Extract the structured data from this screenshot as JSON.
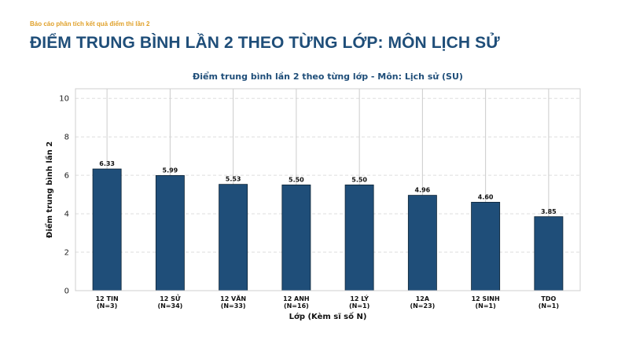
{
  "header": {
    "kicker": "Báo cáo phân tích kết quả điểm thi lần 2",
    "title": "ĐIỂM TRUNG BÌNH LẦN 2 THEO TỪNG LỚP: MÔN LỊCH SỬ"
  },
  "chart_data": {
    "type": "bar",
    "title": "Điểm trung bình lần 2 theo từng lớp - Môn: Lịch sử (SU)",
    "xlabel": "Lớp (Kèm sĩ số N)",
    "ylabel": "Điểm trung bình lần 2",
    "ylim": [
      0,
      10.5
    ],
    "yticks": [
      0,
      2,
      4,
      6,
      8,
      10
    ],
    "grid": true,
    "categories": [
      {
        "name": "12 TIN",
        "n": "(N=3)"
      },
      {
        "name": "12 SỬ",
        "n": "(N=34)"
      },
      {
        "name": "12 VĂN",
        "n": "(N=33)"
      },
      {
        "name": "12 ANH",
        "n": "(N=16)"
      },
      {
        "name": "12 LÝ",
        "n": "(N=1)"
      },
      {
        "name": "12A",
        "n": "(N=23)"
      },
      {
        "name": "12 SINH",
        "n": "(N=1)"
      },
      {
        "name": "TDO",
        "n": "(N=1)"
      }
    ],
    "values": [
      6.33,
      5.99,
      5.53,
      5.5,
      5.5,
      4.96,
      4.6,
      3.85
    ],
    "value_labels": [
      "6.33",
      "5.99",
      "5.53",
      "5.50",
      "5.50",
      "4.96",
      "4.60",
      "3.85"
    ],
    "bar_color": "#1f4e79"
  }
}
